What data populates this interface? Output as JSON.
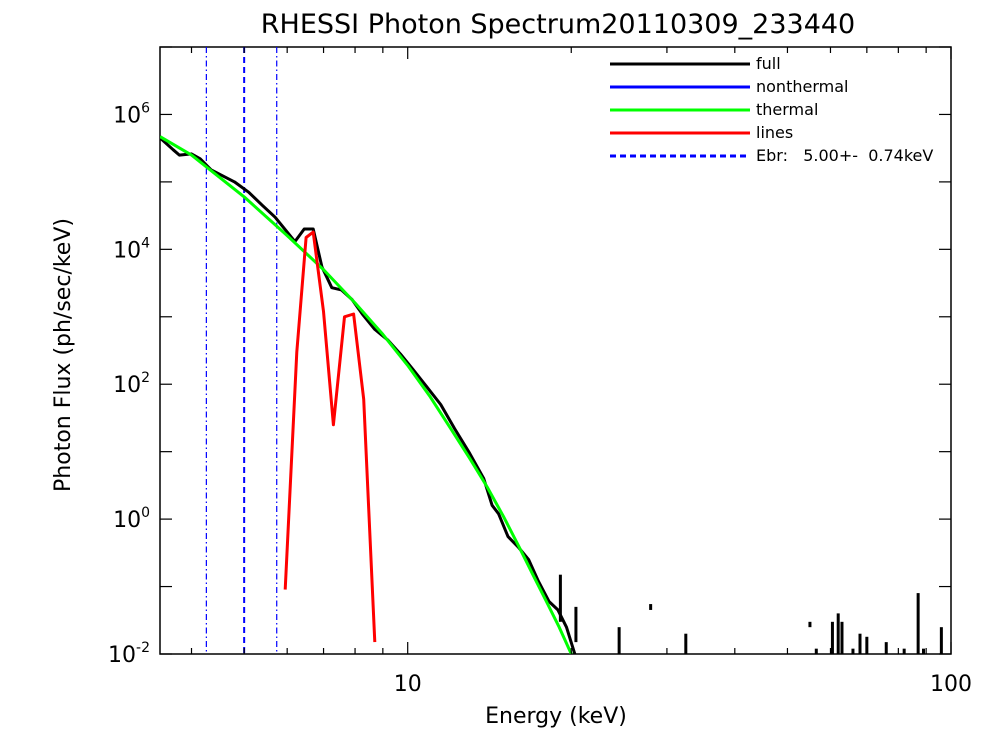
{
  "chart_data": {
    "type": "line",
    "title": "RHESSI Photon Spectrum20110309_233440",
    "xlabel": "Energy (keV)",
    "ylabel": "Photon Flux (ph/sec/keV)",
    "xscale": "log",
    "yscale": "log",
    "xlim": [
      3.5,
      100
    ],
    "ylim": [
      0.01,
      10000000
    ],
    "x_tick_labels": [
      {
        "value": 10,
        "text": "10"
      },
      {
        "value": 100,
        "text": "100"
      }
    ],
    "y_tick_labels": [
      {
        "value": 0.01,
        "base": "10",
        "exp": "-2"
      },
      {
        "value": 1,
        "base": "10",
        "exp": "0"
      },
      {
        "value": 100,
        "base": "10",
        "exp": "2"
      },
      {
        "value": 10000,
        "base": "10",
        "exp": "4"
      },
      {
        "value": 1000000,
        "base": "10",
        "exp": "6"
      }
    ],
    "legend_position": "top-right",
    "series": [
      {
        "name": "full",
        "color": "#000000",
        "points": [
          [
            3.5,
            450000
          ],
          [
            3.7,
            300000
          ],
          [
            3.8,
            250000
          ],
          [
            4.0,
            260000
          ],
          [
            4.15,
            220000
          ],
          [
            4.35,
            150000
          ],
          [
            4.55,
            125000
          ],
          [
            4.8,
            100000
          ],
          [
            5.1,
            70000
          ],
          [
            5.4,
            45000
          ],
          [
            5.7,
            30000
          ],
          [
            6.0,
            18000
          ],
          [
            6.2,
            13000
          ],
          [
            6.45,
            20000
          ],
          [
            6.7,
            20000
          ],
          [
            6.95,
            5500
          ],
          [
            7.25,
            2700
          ],
          [
            7.55,
            2500
          ],
          [
            7.9,
            1800
          ],
          [
            8.25,
            1100
          ],
          [
            8.7,
            650
          ],
          [
            9.2,
            450
          ],
          [
            9.7,
            280
          ],
          [
            10.2,
            170
          ],
          [
            10.8,
            95
          ],
          [
            11.5,
            50
          ],
          [
            12.2,
            22
          ],
          [
            13.0,
            9.5
          ],
          [
            13.8,
            4.0
          ],
          [
            14.3,
            1.6
          ],
          [
            14.7,
            1.2
          ],
          [
            15.3,
            0.55
          ],
          [
            16.0,
            0.38
          ],
          [
            16.7,
            0.25
          ],
          [
            17.4,
            0.12
          ],
          [
            18.2,
            0.06
          ],
          [
            18.9,
            0.045
          ],
          [
            19.6,
            0.025
          ],
          [
            20.3,
            0.01
          ]
        ]
      },
      {
        "name": "nonthermal",
        "color": "#0000ff",
        "points": []
      },
      {
        "name": "thermal",
        "color": "#00ff00",
        "points": [
          [
            3.5,
            470000
          ],
          [
            4.0,
            250000
          ],
          [
            5.0,
            60000
          ],
          [
            6.0,
            16000
          ],
          [
            7.0,
            5000
          ],
          [
            8.0,
            1600
          ],
          [
            9.0,
            550
          ],
          [
            10.0,
            190
          ],
          [
            11.0,
            65
          ],
          [
            12.0,
            22
          ],
          [
            13.0,
            8
          ],
          [
            14.0,
            3
          ],
          [
            15.0,
            1.1
          ],
          [
            16.0,
            0.4
          ],
          [
            17.0,
            0.15
          ],
          [
            18.0,
            0.06
          ],
          [
            19.0,
            0.025
          ],
          [
            20.0,
            0.01
          ]
        ]
      },
      {
        "name": "lines",
        "color": "#ff0000",
        "points": [
          [
            5.95,
            0.09
          ],
          [
            6.25,
            300
          ],
          [
            6.5,
            15000
          ],
          [
            6.7,
            18000
          ],
          [
            7.0,
            1200
          ],
          [
            7.3,
            25
          ],
          [
            7.65,
            1000
          ],
          [
            7.95,
            1100
          ],
          [
            8.3,
            60
          ],
          [
            8.7,
            0.015
          ]
        ]
      }
    ],
    "vertical_lines": [
      {
        "name": "Ebr",
        "x": 5.0,
        "style": "dashed",
        "color": "#0000ff"
      },
      {
        "name": "Ebr-",
        "x": 4.26,
        "style": "dash-dot",
        "color": "#0000ff"
      },
      {
        "name": "Ebr+",
        "x": 5.74,
        "style": "dash-dot",
        "color": "#0000ff"
      }
    ],
    "scatter_segments": [
      {
        "x": 19.1,
        "y0": 0.03,
        "y1": 0.15
      },
      {
        "x": 20.4,
        "y0": 0.015,
        "y1": 0.05
      },
      {
        "x": 24.5,
        "y0": 0.01,
        "y1": 0.025
      },
      {
        "x": 28.0,
        "y0": 0.045,
        "y1": 0.055
      },
      {
        "x": 32.5,
        "y0": 0.01,
        "y1": 0.02
      },
      {
        "x": 55.0,
        "y0": 0.025,
        "y1": 0.03
      },
      {
        "x": 56.5,
        "y0": 0.01,
        "y1": 0.012
      },
      {
        "x": 60.5,
        "y0": 0.01,
        "y1": 0.03
      },
      {
        "x": 62.0,
        "y0": 0.01,
        "y1": 0.04
      },
      {
        "x": 63.0,
        "y0": 0.01,
        "y1": 0.03
      },
      {
        "x": 66.0,
        "y0": 0.01,
        "y1": 0.012
      },
      {
        "x": 68.0,
        "y0": 0.01,
        "y1": 0.02
      },
      {
        "x": 70.0,
        "y0": 0.01,
        "y1": 0.018
      },
      {
        "x": 76.0,
        "y0": 0.01,
        "y1": 0.015
      },
      {
        "x": 82.0,
        "y0": 0.01,
        "y1": 0.012
      },
      {
        "x": 87.0,
        "y0": 0.01,
        "y1": 0.08
      },
      {
        "x": 89.0,
        "y0": 0.01,
        "y1": 0.012
      },
      {
        "x": 96.0,
        "y0": 0.01,
        "y1": 0.025
      }
    ],
    "legend": [
      {
        "label": "full",
        "color": "#000000",
        "style": "solid"
      },
      {
        "label": "nonthermal",
        "color": "#0000ff",
        "style": "solid"
      },
      {
        "label": "thermal",
        "color": "#00ff00",
        "style": "solid"
      },
      {
        "label": "lines",
        "color": "#ff0000",
        "style": "solid"
      },
      {
        "label": "Ebr:   5.00+-  0.74keV",
        "color": "#0000ff",
        "style": "dashed"
      }
    ]
  }
}
